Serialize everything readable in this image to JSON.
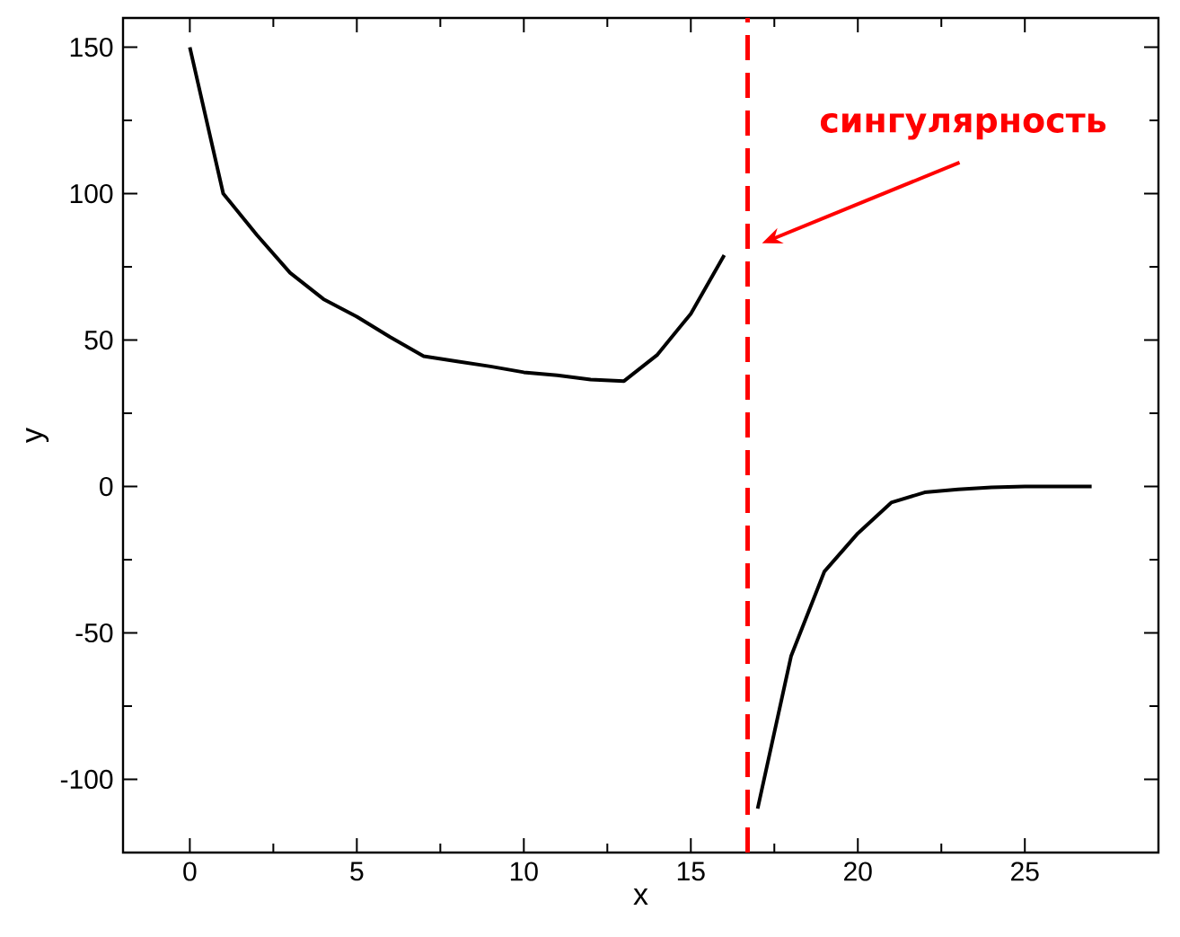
{
  "chart_data": {
    "type": "line",
    "xlabel": "x",
    "ylabel": "y",
    "xlim": [
      -2,
      29
    ],
    "ylim": [
      -125,
      160
    ],
    "xticks": [
      0,
      5,
      10,
      15,
      20,
      25
    ],
    "yticks": [
      -100,
      -50,
      0,
      50,
      100,
      150
    ],
    "series": [
      {
        "color": "#000000",
        "x": [
          0,
          1,
          2,
          3,
          4,
          5,
          6,
          7,
          8,
          9,
          10,
          11,
          12,
          13,
          14,
          15,
          16
        ],
        "values": [
          150,
          100,
          86,
          73,
          64,
          58,
          51,
          44.5,
          42.7,
          41,
          39,
          38,
          36.5,
          36,
          45,
          59,
          79
        ]
      },
      {
        "color": "#000000",
        "x": [
          17,
          18,
          19,
          20,
          21,
          22,
          23,
          24,
          25,
          26,
          27
        ],
        "values": [
          -110,
          -58,
          -29,
          -16,
          -5.5,
          -2,
          -1,
          -0.3,
          0,
          0,
          0
        ]
      }
    ],
    "line_style": "solid",
    "marker": "none",
    "ref_lines": [
      {
        "axis": "x",
        "value": 16.7,
        "color": "#ff0000",
        "line_style": "dashed",
        "label": "сингулярность"
      }
    ]
  }
}
